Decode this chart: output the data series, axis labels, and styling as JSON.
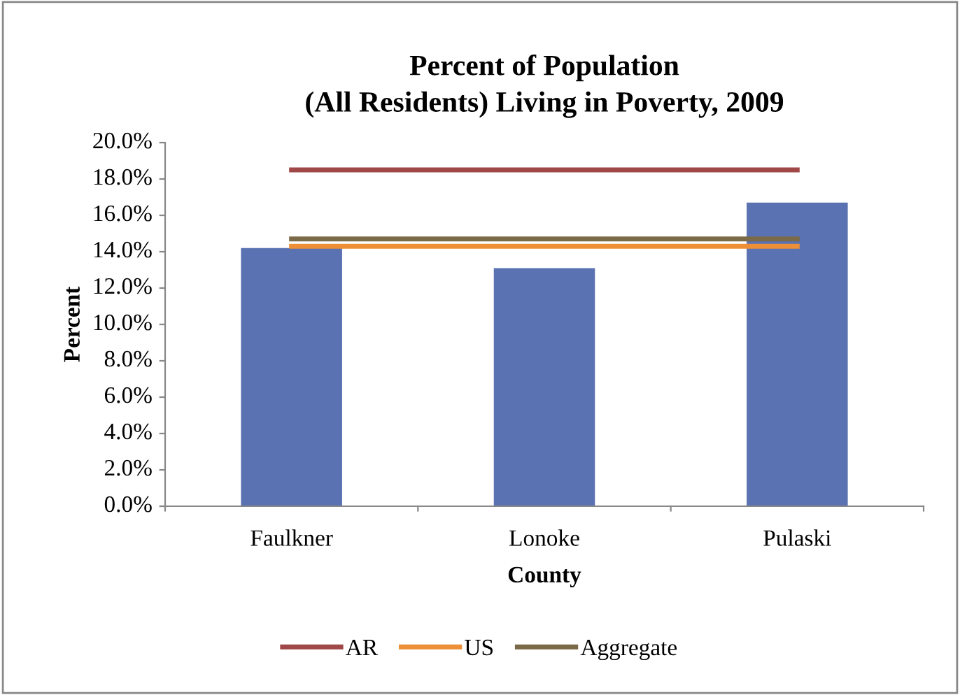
{
  "chart_data": {
    "type": "bar",
    "title": "Percent of Population\n(All Residents) Living in Poverty, 2009",
    "xlabel": "County",
    "ylabel": "Percent",
    "categories": [
      "Faulkner",
      "Lonoke",
      "Pulaski"
    ],
    "series": [
      {
        "color": "#5b72b2",
        "values": [
          14.2,
          13.1,
          16.7
        ]
      },
      {
        "type": "line",
        "name": "AR",
        "color": "#a04848",
        "values": [
          18.5,
          18.5,
          18.5
        ]
      },
      {
        "type": "line",
        "name": "US",
        "color": "#ec8f36",
        "values": [
          14.3,
          14.3,
          14.3
        ]
      },
      {
        "type": "line",
        "name": "Aggregate",
        "color": "#7b6a48",
        "values": [
          14.7,
          14.7,
          14.7
        ]
      }
    ],
    "ylim": [
      0,
      20
    ],
    "yticks": [
      {
        "value": 0,
        "label": "0.0%"
      },
      {
        "value": 2,
        "label": "2.0%"
      },
      {
        "value": 4,
        "label": "4.0%"
      },
      {
        "value": 6,
        "label": "6.0%"
      },
      {
        "value": 8,
        "label": "8.0%"
      },
      {
        "value": 10,
        "label": "10.0%"
      },
      {
        "value": 12,
        "label": "12.0%"
      },
      {
        "value": 14,
        "label": "14.0%"
      },
      {
        "value": 16,
        "label": "16.0%"
      },
      {
        "value": 18,
        "label": "18.0%"
      },
      {
        "value": 20,
        "label": "20.0%"
      }
    ],
    "grid": false,
    "legend": "bottom",
    "marker": "none",
    "line_style": "solid"
  }
}
